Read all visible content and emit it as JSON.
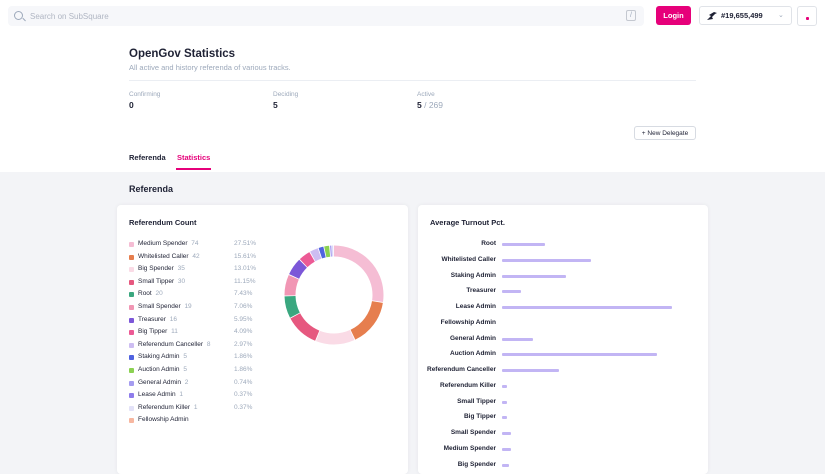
{
  "search": {
    "placeholder": "Search on SubSquare",
    "shortcut": "/"
  },
  "topbar": {
    "login_label": "Login",
    "block_number": "#19,655,499",
    "chain_icon": "kusama-bird-icon",
    "chevron": "⌄"
  },
  "page": {
    "title": "OpenGov Statistics",
    "subtitle": "All active and history referenda of various tracks."
  },
  "summary": {
    "confirming": {
      "label": "Confirming",
      "value": "0"
    },
    "deciding": {
      "label": "Deciding",
      "value": "5"
    },
    "active": {
      "label": "Active",
      "value": "5",
      "total": " / 269"
    }
  },
  "new_delegate_label": "+ New Delegate",
  "tabs": [
    {
      "label": "Referenda",
      "active": false
    },
    {
      "label": "Statistics",
      "active": true
    }
  ],
  "section_title": "Referenda",
  "referendum_count": {
    "title": "Referendum Count",
    "items": [
      {
        "name": "Medium Spender",
        "count": "74",
        "pct": "27.51%",
        "color": "#f5bdd4"
      },
      {
        "name": "Whitelisted Caller",
        "count": "42",
        "pct": "15.61%",
        "color": "#e67e4e"
      },
      {
        "name": "Big Spender",
        "count": "35",
        "pct": "13.01%",
        "color": "#fadbe6"
      },
      {
        "name": "Small Tipper",
        "count": "30",
        "pct": "11.15%",
        "color": "#e6587f"
      },
      {
        "name": "Root",
        "count": "20",
        "pct": "7.43%",
        "color": "#3aa77f"
      },
      {
        "name": "Small Spender",
        "count": "19",
        "pct": "7.06%",
        "color": "#f196b4"
      },
      {
        "name": "Treasurer",
        "count": "16",
        "pct": "5.95%",
        "color": "#7c57d8"
      },
      {
        "name": "Big Tipper",
        "count": "11",
        "pct": "4.09%",
        "color": "#ec5a95"
      },
      {
        "name": "Referendum Canceller",
        "count": "8",
        "pct": "2.97%",
        "color": "#cdbdf2"
      },
      {
        "name": "Staking Admin",
        "count": "5",
        "pct": "1.86%",
        "color": "#5063e0"
      },
      {
        "name": "Auction Admin",
        "count": "5",
        "pct": "1.86%",
        "color": "#8bd152"
      },
      {
        "name": "General Admin",
        "count": "2",
        "pct": "0.74%",
        "color": "#a59cf0"
      },
      {
        "name": "Lease Admin",
        "count": "1",
        "pct": "0.37%",
        "color": "#8e7ceb"
      },
      {
        "name": "Referendum Killer",
        "count": "1",
        "pct": "0.37%",
        "color": "#e3e2f8"
      },
      {
        "name": "Fellowship Admin",
        "count": "",
        "pct": "",
        "color": "#f7b7a0"
      }
    ]
  },
  "average_turnout": {
    "title": "Average Turnout Pct.",
    "bar_color": "#c2b5f4",
    "items": [
      {
        "name": "Root",
        "value": 25
      },
      {
        "name": "Whitelisted Caller",
        "value": 52
      },
      {
        "name": "Staking Admin",
        "value": 37
      },
      {
        "name": "Treasurer",
        "value": 11
      },
      {
        "name": "Lease Admin",
        "value": 99
      },
      {
        "name": "Fellowship Admin",
        "value": 0
      },
      {
        "name": "General Admin",
        "value": 18
      },
      {
        "name": "Auction Admin",
        "value": 90
      },
      {
        "name": "Referendum Canceller",
        "value": 33
      },
      {
        "name": "Referendum Killer",
        "value": 3
      },
      {
        "name": "Small Tipper",
        "value": 3
      },
      {
        "name": "Big Tipper",
        "value": 3
      },
      {
        "name": "Small Spender",
        "value": 5
      },
      {
        "name": "Medium Spender",
        "value": 5
      },
      {
        "name": "Big Spender",
        "value": 4
      }
    ]
  }
}
